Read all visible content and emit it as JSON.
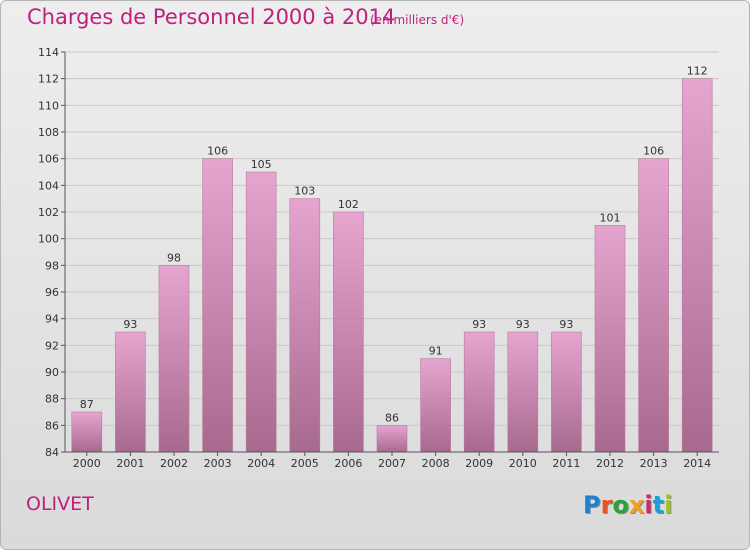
{
  "header": {
    "title": "Charges de Personnel 2000 à 2014",
    "subtitle": "(en milliers d'€)"
  },
  "footer": {
    "city": "OLIVET",
    "logo_text": "Proxiti"
  },
  "colors": {
    "accent": "#c11f7d",
    "bar_top": "#e6a5cf",
    "bar_bottom": "#a8698f"
  },
  "chart_data": {
    "type": "bar",
    "categories": [
      "2000",
      "2001",
      "2002",
      "2003",
      "2004",
      "2005",
      "2006",
      "2007",
      "2008",
      "2009",
      "2010",
      "2011",
      "2012",
      "2013",
      "2014"
    ],
    "values": [
      87,
      93,
      98,
      106,
      105,
      103,
      102,
      86,
      91,
      93,
      93,
      93,
      101,
      106,
      112
    ],
    "title": "Charges de Personnel 2000 à 2014",
    "subtitle": "(en milliers d'€)",
    "ylim": [
      84,
      114
    ],
    "yticks": [
      84,
      86,
      88,
      90,
      92,
      94,
      96,
      98,
      100,
      102,
      104,
      106,
      108,
      110,
      112,
      114
    ],
    "grid": true
  }
}
